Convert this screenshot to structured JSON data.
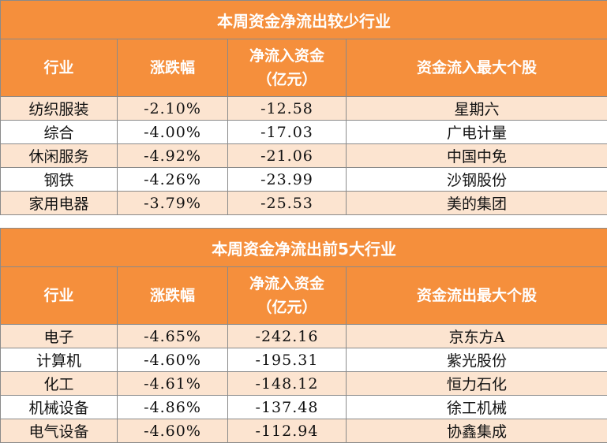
{
  "columns_widths_note": "",
  "table1": {
    "title": "本周资金净流出较少行业",
    "headers": [
      "行业",
      "涨跌幅",
      "净流入资金\n（亿元）",
      "资金流入最大个股"
    ],
    "rows": [
      [
        "纺织服装",
        "-2.10%",
        "-12.58",
        "星期六"
      ],
      [
        "综合",
        "-4.00%",
        "-17.03",
        "广电计量"
      ],
      [
        "休闲服务",
        "-4.92%",
        "-21.06",
        "中国中免"
      ],
      [
        "钢铁",
        "-4.26%",
        "-23.99",
        "沙钢股份"
      ],
      [
        "家用电器",
        "-3.79%",
        "-25.53",
        "美的集团"
      ]
    ]
  },
  "table2": {
    "title": "本周资金净流出前5大行业",
    "headers": [
      "行业",
      "涨跌幅",
      "净流入资金\n（亿元）",
      "资金流出最大个股"
    ],
    "rows": [
      [
        "电子",
        "-4.65%",
        "-242.16",
        "京东方A"
      ],
      [
        "计算机",
        "-4.60%",
        "-195.31",
        "紫光股份"
      ],
      [
        "化工",
        "-4.61%",
        "-148.12",
        "恒力石化"
      ],
      [
        "机械设备",
        "-4.86%",
        "-137.48",
        "徐工机械"
      ],
      [
        "电气设备",
        "-4.60%",
        "-112.94",
        "协鑫集成"
      ]
    ]
  },
  "colors": {
    "header": "#f58f3c",
    "band": "#fce4d0"
  }
}
